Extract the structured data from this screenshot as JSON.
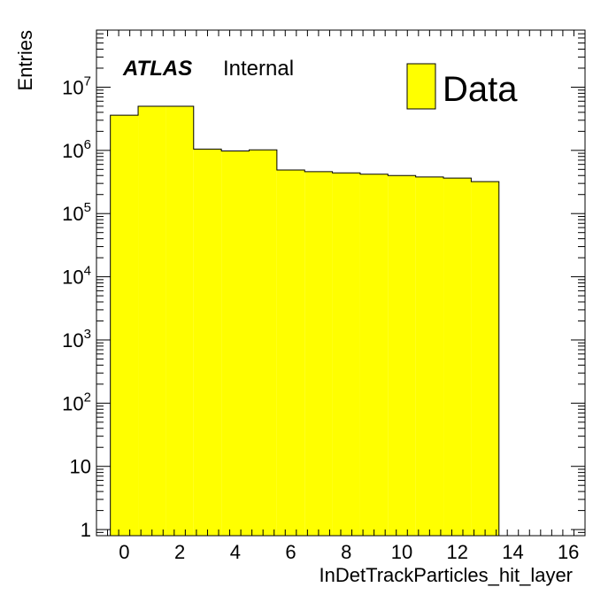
{
  "chart_data": {
    "type": "bar",
    "xlabel": "InDetTrackParticles_hit_layer",
    "ylabel": "Entries",
    "log_y": true,
    "xlim": [
      -1,
      16.6
    ],
    "ylim": [
      0.8,
      80000000
    ],
    "x_ticks": [
      0,
      2,
      4,
      6,
      8,
      10,
      12,
      14,
      16
    ],
    "y_ticks": [
      {
        "value": 1,
        "base": "1",
        "exp": ""
      },
      {
        "value": 10,
        "base": "10",
        "exp": ""
      },
      {
        "value": 100,
        "base": "10",
        "exp": "2"
      },
      {
        "value": 1000,
        "base": "10",
        "exp": "3"
      },
      {
        "value": 10000,
        "base": "10",
        "exp": "4"
      },
      {
        "value": 100000,
        "base": "10",
        "exp": "5"
      },
      {
        "value": 1000000,
        "base": "10",
        "exp": "6"
      },
      {
        "value": 10000000,
        "base": "10",
        "exp": "7"
      }
    ],
    "bin_centers": [
      0,
      1,
      2,
      3,
      4,
      5,
      6,
      7,
      8,
      9,
      10,
      11,
      12,
      13
    ],
    "bin_width": 1,
    "values": [
      3600000,
      5000000,
      5000000,
      1050000,
      980000,
      1020000,
      490000,
      460000,
      440000,
      420000,
      400000,
      380000,
      365000,
      320000
    ],
    "series": [
      {
        "name": "Data",
        "color": "#ffff00"
      }
    ],
    "fill_color": "#ffff00",
    "edge_color": "#000000",
    "legend_placement": "top-right",
    "grid": false
  },
  "annotation": {
    "experiment": "ATLAS",
    "status": "Internal"
  },
  "legend": {
    "label": "Data"
  }
}
